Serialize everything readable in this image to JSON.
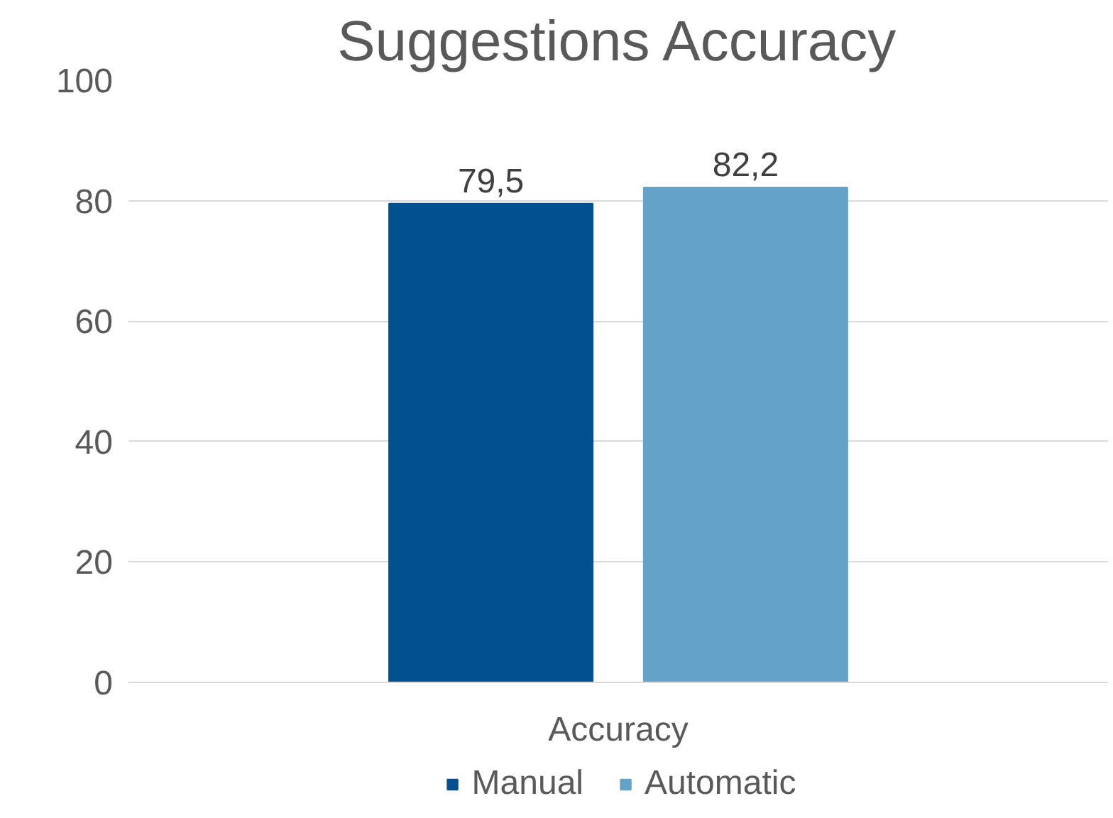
{
  "chart_data": {
    "type": "bar",
    "title": "Suggestions Accuracy",
    "categories": [
      "Accuracy"
    ],
    "series": [
      {
        "name": "Manual",
        "color": "#02508f",
        "values": [
          79.5
        ],
        "value_labels": [
          "79,5"
        ]
      },
      {
        "name": "Automatic",
        "color": "#65a2ca",
        "values": [
          82.2
        ],
        "value_labels": [
          "82,2"
        ]
      }
    ],
    "ylim": [
      0,
      100
    ],
    "yticks": [
      0,
      20,
      40,
      60,
      80,
      100
    ],
    "grid": "y",
    "legend": "bottom"
  }
}
